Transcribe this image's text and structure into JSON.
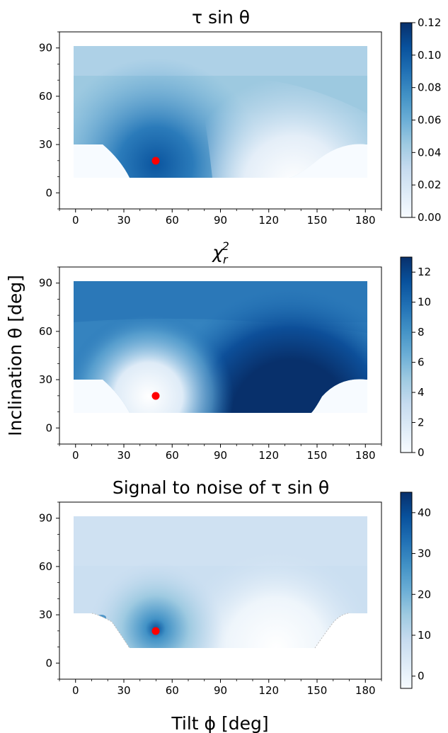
{
  "figure": {
    "ylabel": "Inclination θ [deg]",
    "xlabel": "Tilt ϕ [deg]"
  },
  "chart_data": [
    {
      "type": "heatmap",
      "title": "τ sin θ",
      "x_ticks": [
        0,
        30,
        60,
        90,
        120,
        150,
        180
      ],
      "y_ticks": [
        0,
        30,
        60,
        90
      ],
      "xlim": [
        -10,
        190
      ],
      "ylim": [
        -10,
        100
      ],
      "colormap": "Blues",
      "colorbar": {
        "min": 0.0,
        "max": 0.12,
        "ticks": [
          "0.00",
          "0.02",
          "0.04",
          "0.06",
          "0.08",
          "0.10",
          "0.12"
        ]
      },
      "marker": {
        "x": 50,
        "y": 20,
        "color": "#ff0000"
      }
    },
    {
      "type": "heatmap",
      "title": "χ_r^2",
      "x_ticks": [
        0,
        30,
        60,
        90,
        120,
        150,
        180
      ],
      "y_ticks": [
        0,
        30,
        60,
        90
      ],
      "xlim": [
        -10,
        190
      ],
      "ylim": [
        -10,
        100
      ],
      "colormap": "Blues",
      "colorbar": {
        "min": 0,
        "max": 13,
        "ticks": [
          "0",
          "2",
          "4",
          "6",
          "8",
          "10",
          "12"
        ]
      },
      "marker": {
        "x": 50,
        "y": 20,
        "color": "#ff0000"
      }
    },
    {
      "type": "heatmap",
      "title": "Signal to noise of τ sin θ",
      "x_ticks": [
        0,
        30,
        60,
        90,
        120,
        150,
        180
      ],
      "y_ticks": [
        0,
        30,
        60,
        90
      ],
      "xlim": [
        -10,
        190
      ],
      "ylim": [
        -10,
        100
      ],
      "colormap": "Blues",
      "colorbar": {
        "min": -3,
        "max": 45,
        "ticks": [
          "0",
          "10",
          "20",
          "30",
          "40"
        ]
      },
      "marker": {
        "x": 50,
        "y": 20,
        "color": "#ff0000"
      }
    }
  ]
}
